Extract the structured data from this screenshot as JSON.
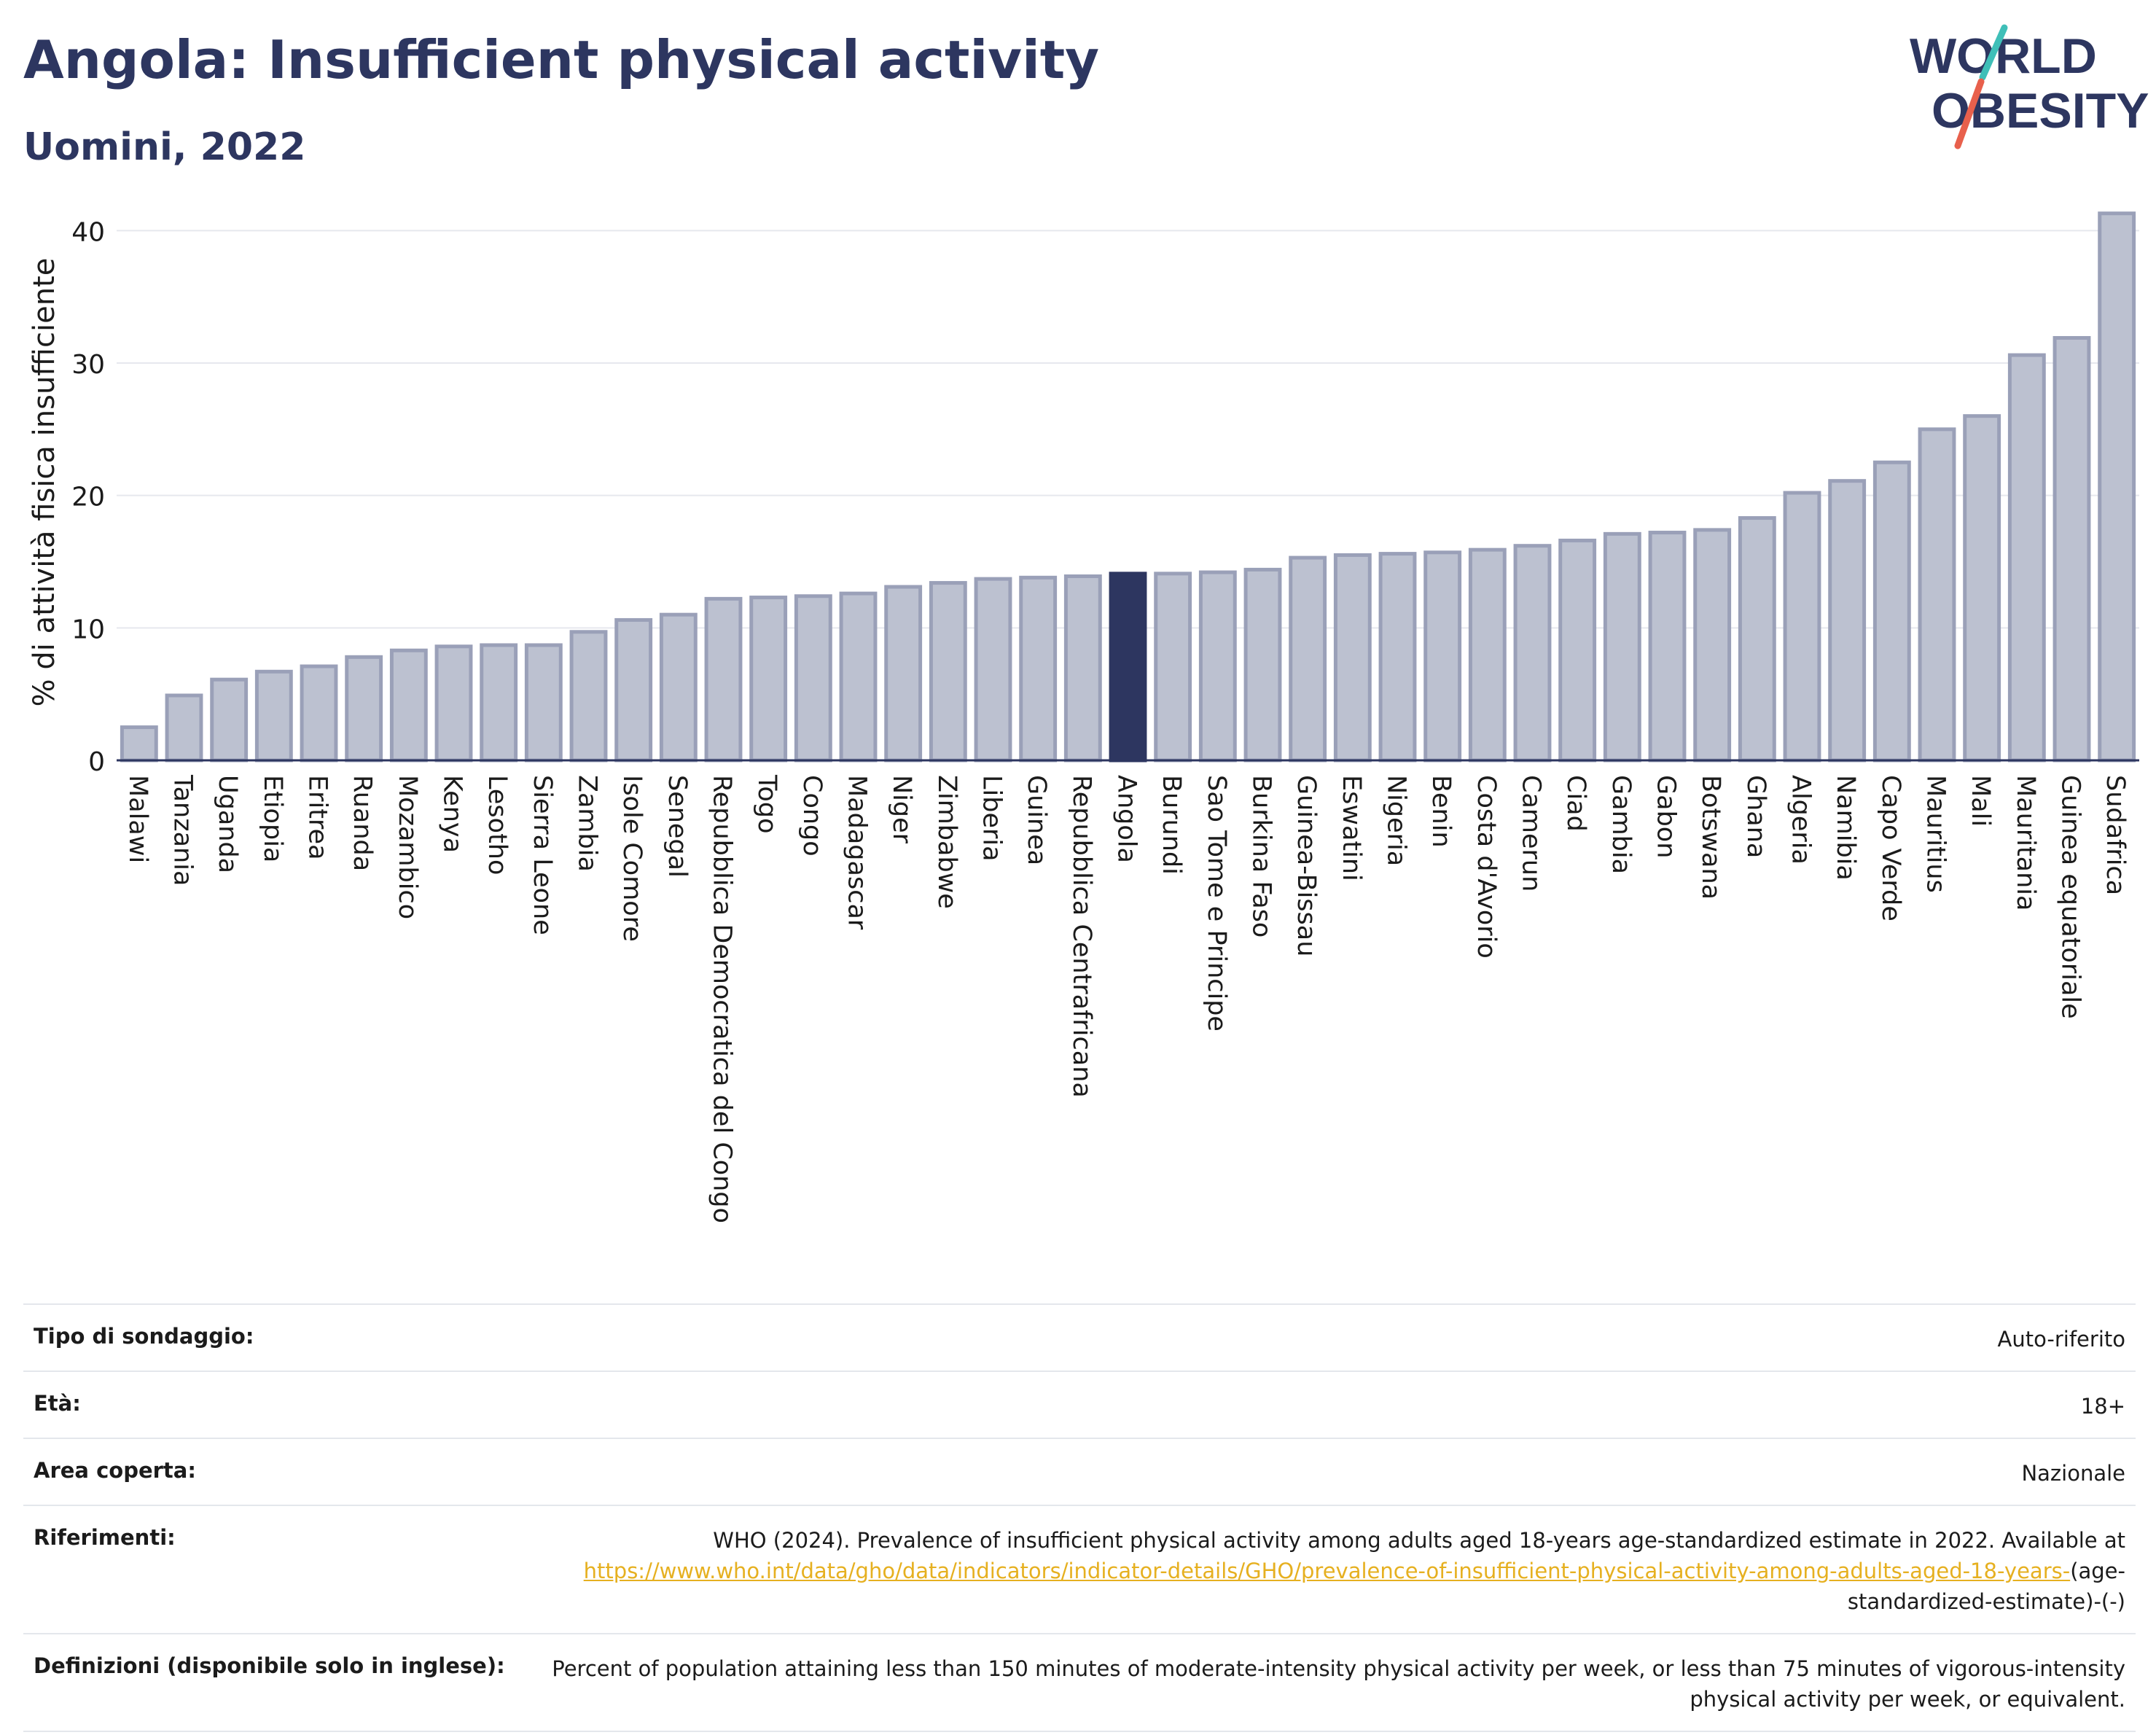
{
  "header": {
    "title": "Angola: Insufficient physical activity",
    "subtitle": "Uomini, 2022",
    "logo_line1": "WORLD",
    "logo_line2": "OBESITY"
  },
  "colors": {
    "title": "#2d3660",
    "bar": "#bcc1d0",
    "bar_stroke": "#9aa0b8",
    "highlight": "#2d3660",
    "link": "#e6b020",
    "logo_teal": "#3fbfb8",
    "logo_red": "#e8604c"
  },
  "chart_data": {
    "type": "bar",
    "ylabel": "% di attività fisica insufficiente",
    "xlabel": "",
    "ylim": [
      0,
      42
    ],
    "yticks": [
      0,
      10,
      20,
      30,
      40
    ],
    "grid": true,
    "highlight": "Angola",
    "categories": [
      "Malawi",
      "Tanzania",
      "Uganda",
      "Etiopia",
      "Eritrea",
      "Ruanda",
      "Mozambico",
      "Kenya",
      "Lesotho",
      "Sierra Leone",
      "Zambia",
      "Isole Comore",
      "Senegal",
      "Repubblica Democratica del Congo",
      "Togo",
      "Congo",
      "Madagascar",
      "Niger",
      "Zimbabwe",
      "Liberia",
      "Guinea",
      "Repubblica Centrafricana",
      "Angola",
      "Burundi",
      "Sao Tome e Principe",
      "Burkina Faso",
      "Guinea-Bissau",
      "Eswatini",
      "Nigeria",
      "Benin",
      "Costa d'Avorio",
      "Camerun",
      "Ciad",
      "Gambia",
      "Gabon",
      "Botswana",
      "Ghana",
      "Algeria",
      "Namibia",
      "Capo Verde",
      "Mauritius",
      "Mali",
      "Mauritania",
      "Guinea equatoriale",
      "Sudafrica"
    ],
    "values": [
      2.5,
      4.9,
      6.1,
      6.7,
      7.1,
      7.8,
      8.3,
      8.6,
      8.7,
      8.7,
      9.7,
      10.6,
      11.0,
      12.2,
      12.3,
      12.4,
      12.6,
      13.1,
      13.4,
      13.7,
      13.8,
      13.9,
      14.1,
      14.1,
      14.2,
      14.4,
      15.3,
      15.5,
      15.6,
      15.7,
      15.9,
      16.2,
      16.6,
      17.1,
      17.2,
      17.4,
      18.3,
      20.2,
      21.1,
      22.5,
      25.0,
      26.0,
      30.6,
      31.9,
      41.3
    ]
  },
  "info": {
    "survey_label": "Tipo di sondaggio:",
    "survey_value": "Auto-riferito",
    "age_label": "Età:",
    "age_value": "18+",
    "area_label": "Area coperta:",
    "area_value": "Nazionale",
    "ref_label": "Riferimenti:",
    "ref_text": "WHO (2024). Prevalence of insufficient physical activity among adults aged 18-years age-standardized estimate in 2022. Available at",
    "ref_link": "https://www.who.int/data/gho/data/indicators/indicator-details/GHO/prevalence-of-insufficient-physical-activity-among-adults-aged-18-years-",
    "ref_suffix": "(age-standardized-estimate)-(-)",
    "def_label": "Definizioni (disponibile solo in inglese):",
    "def_text": "Percent of population attaining less than 150 minutes of moderate-intensity physical activity per week, or less than 75 minutes of vigorous-intensity physical activity per week, or equivalent."
  }
}
